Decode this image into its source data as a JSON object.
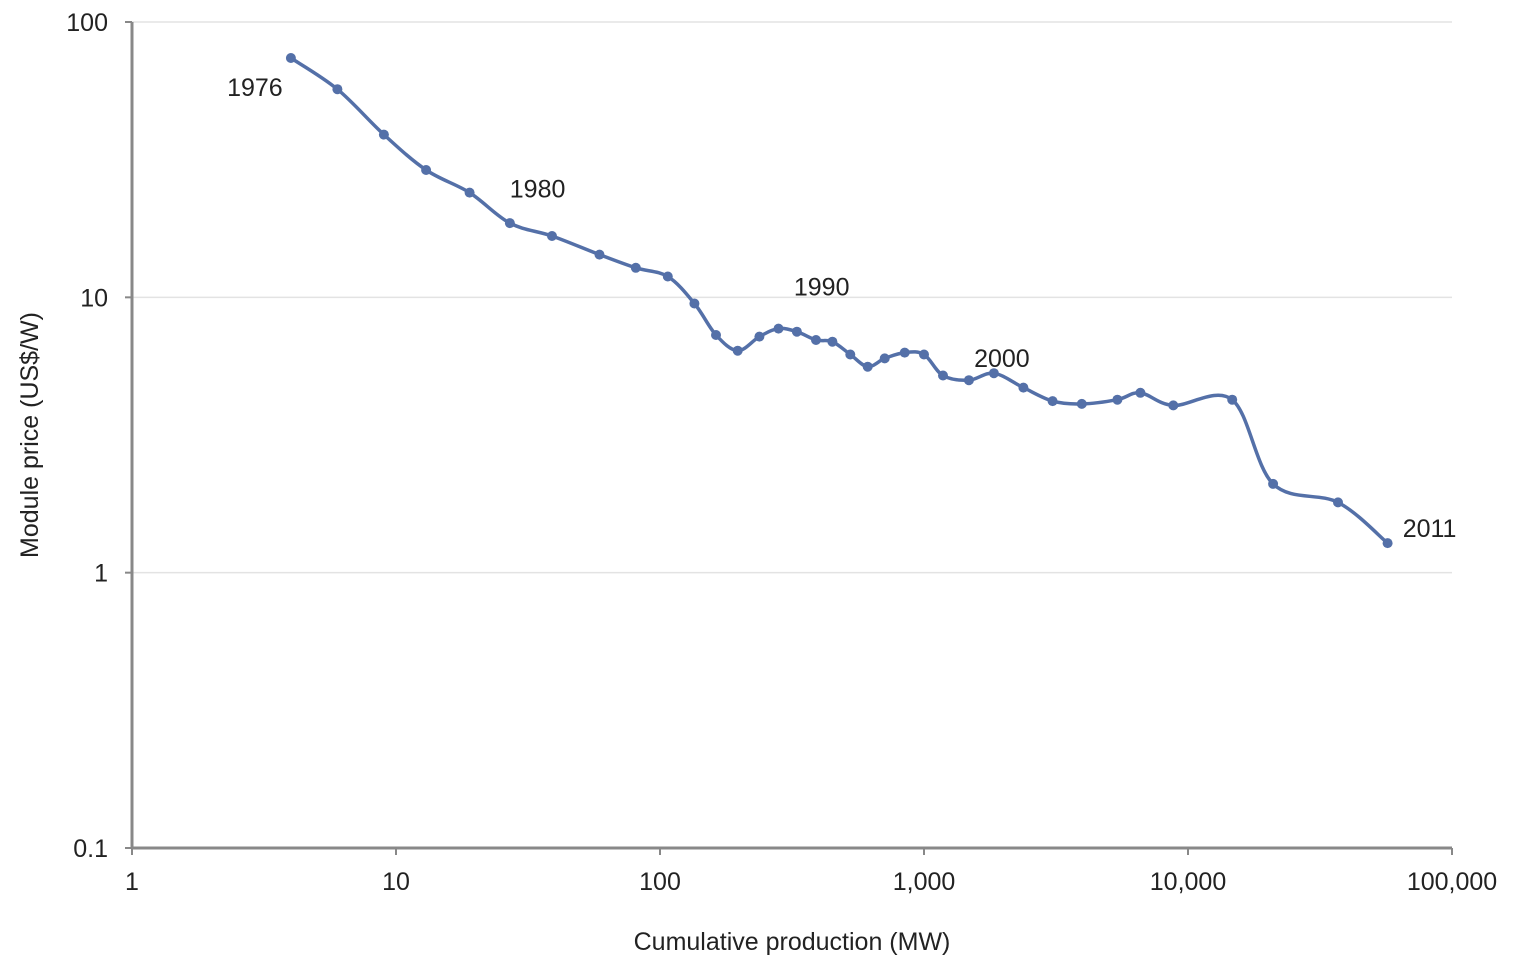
{
  "chart_data": {
    "type": "line",
    "title": "",
    "xlabel": "Cumulative production (MW)",
    "ylabel": "Module price (US$/W)",
    "xscale": "log",
    "yscale": "log",
    "xlim": [
      1,
      100000
    ],
    "ylim": [
      0.1,
      100
    ],
    "grid": "horizontal",
    "line_color": "#5470a8",
    "x_ticks": [
      {
        "value": 1,
        "label": "1"
      },
      {
        "value": 10,
        "label": "10"
      },
      {
        "value": 100,
        "label": "100"
      },
      {
        "value": 1000,
        "label": "1,000"
      },
      {
        "value": 10000,
        "label": "10,000"
      },
      {
        "value": 100000,
        "label": "100,000"
      }
    ],
    "y_ticks": [
      {
        "value": 0.1,
        "label": "0.1"
      },
      {
        "value": 1,
        "label": "1"
      },
      {
        "value": 10,
        "label": "10"
      },
      {
        "value": 100,
        "label": "100"
      }
    ],
    "series": [
      {
        "x": [
          4.0,
          6.0,
          9.0,
          13.0,
          19.0,
          27.0,
          39.0,
          59.0,
          81.0,
          107.0,
          135.0,
          163.0,
          197.0,
          238.0,
          281.0,
          330.0,
          390.0,
          450.0,
          526.0,
          612.0,
          710.0,
          845.0,
          1000.0,
          1180.0,
          1480.0,
          1840.0,
          2380.0,
          3070.0,
          3960.0,
          5400.0,
          6600.0,
          8800.0,
          14700.0,
          21000.0,
          37000.0,
          57000.0
        ],
        "y": [
          74.0,
          57.0,
          39.0,
          29.0,
          24.0,
          18.6,
          16.7,
          14.3,
          12.8,
          11.9,
          9.5,
          7.3,
          6.4,
          7.2,
          7.7,
          7.5,
          7.0,
          6.9,
          6.2,
          5.6,
          6.0,
          6.3,
          6.2,
          5.2,
          5.0,
          5.3,
          4.7,
          4.2,
          4.1,
          4.25,
          4.5,
          4.05,
          4.25,
          2.1,
          1.8,
          1.28
        ]
      }
    ],
    "annotations": [
      {
        "text": "1976",
        "x": 4.0,
        "y": 74.0
      },
      {
        "text": "1980",
        "x": 19.0,
        "y": 24.0
      },
      {
        "text": "1990",
        "x": 197.0,
        "y": 6.4
      },
      {
        "text": "2000",
        "x": 1480.0,
        "y": 5.0
      },
      {
        "text": "2011",
        "x": 57000.0,
        "y": 1.28
      }
    ]
  }
}
